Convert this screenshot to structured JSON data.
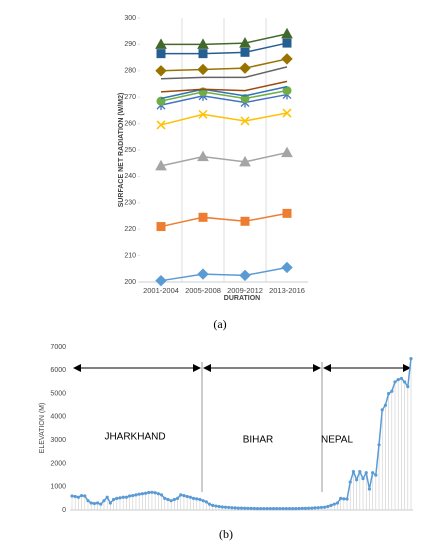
{
  "chart_data": [
    {
      "type": "line",
      "caption": "(a)",
      "x_label": "DURATION",
      "y_label": "SURFACE NET RADIATION (W/M2)",
      "categories": [
        "2001-2004",
        "2005-2008",
        "2009-2012",
        "2013-2016"
      ],
      "ylim": [
        200,
        300
      ],
      "yticks": [
        200,
        210,
        220,
        230,
        240,
        250,
        260,
        270,
        280,
        290,
        300
      ],
      "series": [
        {
          "color": "#5b9bd5",
          "marker": "diamond",
          "values": [
            200.5,
            203,
            202.5,
            205.5
          ]
        },
        {
          "color": "#ed7d31",
          "marker": "square",
          "values": [
            221,
            224.5,
            223,
            226
          ]
        },
        {
          "color": "#a5a5a5",
          "marker": "triangle",
          "values": [
            244,
            247.5,
            245.5,
            249
          ]
        },
        {
          "color": "#ffc000",
          "marker": "x",
          "values": [
            259.5,
            263.5,
            261,
            264
          ]
        },
        {
          "color": "#4472c4",
          "marker": "star",
          "values": [
            267,
            270.5,
            268,
            271
          ]
        },
        {
          "color": "#70ad47",
          "marker": "circle",
          "values": [
            268.5,
            272,
            269.5,
            272.5
          ]
        },
        {
          "color": "#2e75b6",
          "marker": "none",
          "values": [
            269.5,
            273,
            270.5,
            274
          ]
        },
        {
          "color": "#9e480e",
          "marker": "none",
          "values": [
            272,
            273,
            272.5,
            276
          ]
        },
        {
          "color": "#636363",
          "marker": "none",
          "values": [
            277,
            277.5,
            277.5,
            281.5
          ]
        },
        {
          "color": "#997300",
          "marker": "diamond",
          "values": [
            280,
            280.5,
            281,
            284.5
          ]
        },
        {
          "color": "#255e91",
          "marker": "square",
          "values": [
            286.5,
            286.5,
            287,
            290.5
          ]
        },
        {
          "color": "#43682b",
          "marker": "triangle",
          "values": [
            290,
            290,
            290.5,
            294
          ]
        }
      ]
    },
    {
      "type": "line",
      "caption": "(b)",
      "y_label": "ELEVATION (M)",
      "annotations": [
        "JHARKHAND",
        "BIHAR",
        "NEPAL"
      ],
      "ylim": [
        0,
        7000
      ],
      "yticks": [
        0,
        1000,
        2000,
        3000,
        4000,
        5000,
        6000,
        7000
      ],
      "color": "#5b9bd5",
      "values": [
        600,
        580,
        550,
        620,
        600,
        400,
        300,
        280,
        300,
        250,
        400,
        550,
        300,
        450,
        500,
        520,
        550,
        550,
        600,
        620,
        650,
        680,
        700,
        720,
        750,
        760,
        740,
        700,
        650,
        500,
        450,
        400,
        450,
        500,
        650,
        620,
        580,
        550,
        500,
        480,
        450,
        400,
        350,
        250,
        200,
        170,
        150,
        130,
        120,
        110,
        100,
        90,
        80,
        80,
        75,
        70,
        70,
        65,
        60,
        60,
        60,
        60,
        60,
        60,
        60,
        60,
        60,
        60,
        60,
        60,
        60,
        65,
        70,
        70,
        75,
        80,
        90,
        100,
        110,
        120,
        150,
        200,
        250,
        300,
        500,
        480,
        470,
        1200,
        1650,
        1300,
        1650,
        1350,
        1600,
        900,
        1600,
        1500,
        2800,
        4300,
        4500,
        5000,
        5100,
        5500,
        5600,
        5650,
        5500,
        5300,
        6500
      ]
    }
  ]
}
